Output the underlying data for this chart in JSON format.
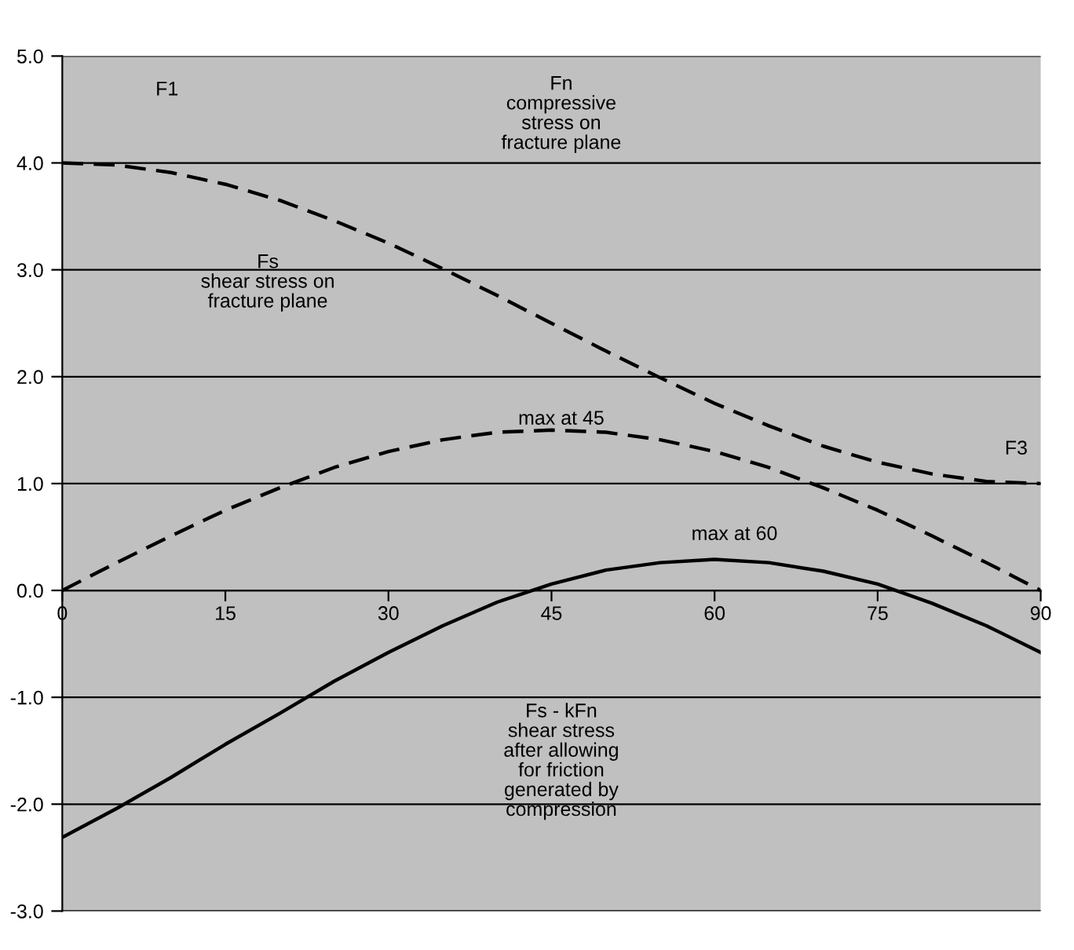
{
  "chart_data": {
    "type": "line",
    "x": [
      0,
      5,
      10,
      15,
      20,
      25,
      30,
      35,
      40,
      45,
      50,
      55,
      60,
      65,
      70,
      75,
      80,
      85,
      90
    ],
    "series": [
      {
        "color": "#000000",
        "line_style": "dashed",
        "values": [
          4.0,
          3.98,
          3.91,
          3.8,
          3.65,
          3.46,
          3.25,
          3.01,
          2.76,
          2.5,
          2.24,
          1.99,
          1.75,
          1.54,
          1.35,
          1.2,
          1.09,
          1.02,
          1.0
        ]
      },
      {
        "color": "#000000",
        "line_style": "dashed",
        "values": [
          0,
          0.26,
          0.51,
          0.75,
          0.96,
          1.15,
          1.3,
          1.41,
          1.48,
          1.5,
          1.48,
          1.41,
          1.3,
          1.15,
          0.96,
          0.75,
          0.51,
          0.26,
          0
        ]
      },
      {
        "color": "#000000",
        "line_style": "solid",
        "values": [
          -2.31,
          -2.04,
          -1.75,
          -1.44,
          -1.15,
          -0.85,
          -0.58,
          -0.33,
          -0.11,
          0.06,
          0.19,
          0.26,
          0.29,
          0.26,
          0.18,
          0.06,
          -0.12,
          -0.33,
          -0.58
        ]
      }
    ],
    "xlim": [
      0,
      90
    ],
    "xticks": [
      0,
      15,
      30,
      45,
      60,
      75,
      90
    ],
    "ylim": [
      -3,
      5
    ],
    "yticks": [
      {
        "value": -3,
        "label": "-3.0"
      },
      {
        "value": -2,
        "label": "-2.0"
      },
      {
        "value": -1,
        "label": "-1.0"
      },
      {
        "value": 0,
        "label": "0.0"
      },
      {
        "value": 1,
        "label": "1.0"
      },
      {
        "value": 2,
        "label": "2.0"
      },
      {
        "value": 3,
        "label": "3.0"
      },
      {
        "value": 4,
        "label": "4.0"
      },
      {
        "value": 5,
        "label": "5.0"
      }
    ],
    "grid": "y",
    "marker": "none",
    "annotations": [
      "F1",
      "Fn\ncompressive\nstress on\nfracture plane",
      "Fs\nshear stress on\nfracture plane",
      "max at 45",
      "F3",
      "max at 60",
      "Fs - kFn\nshear stress\nafter allowing\nfor friction\ngenerated by\ncompression"
    ]
  }
}
